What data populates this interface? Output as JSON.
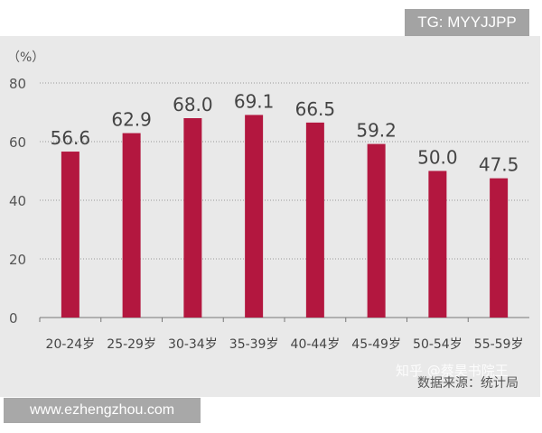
{
  "watermark_top": "TG: MYYJJPP",
  "watermark_bottom": "www.ezhengzhou.com",
  "watermark_zhihu": "知乎 @蔡昊书院王",
  "source": "数据来源：统计局",
  "colors": {
    "bar": "#b3173f",
    "background": "#e9e9e9"
  },
  "chart_data": {
    "type": "bar",
    "ylabel": "（%）",
    "ylim": [
      0,
      80
    ],
    "yticks": [
      "0",
      "20",
      "40",
      "60",
      "80"
    ],
    "grid": "dotted horizontal",
    "categories": [
      "20-24岁",
      "25-29岁",
      "30-34岁",
      "35-39岁",
      "40-44岁",
      "45-49岁",
      "50-54岁",
      "55-59岁"
    ],
    "values": [
      56.6,
      62.9,
      68.0,
      69.1,
      66.5,
      59.2,
      50.0,
      47.5
    ],
    "labels": [
      "56.6",
      "62.9",
      "68.0",
      "69.1",
      "66.5",
      "59.2",
      "50.0",
      "47.5"
    ]
  }
}
